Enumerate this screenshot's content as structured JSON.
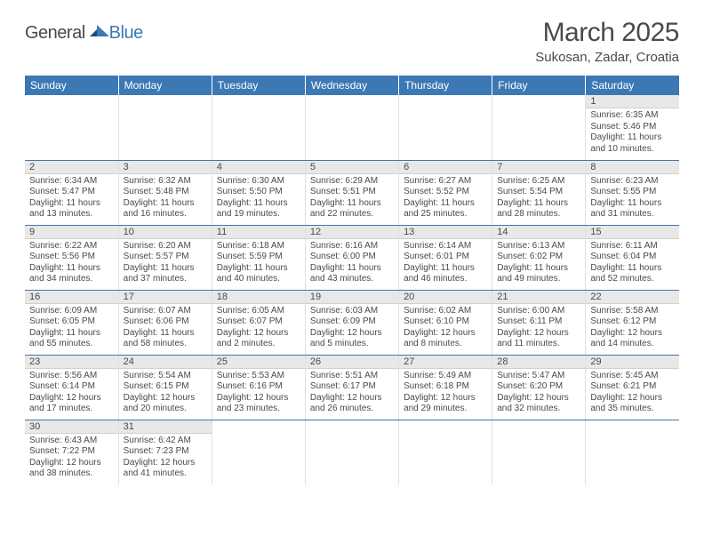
{
  "logo": {
    "general": "General",
    "blue": "Blue"
  },
  "title": "March 2025",
  "location": "Sukosan, Zadar, Croatia",
  "colors": {
    "header_bg": "#3c78b4",
    "header_fg": "#ffffff",
    "daynum_bg": "#e8e8e8",
    "text": "#4a4a4a",
    "row_border": "#3c78b4"
  },
  "weekdays": [
    "Sunday",
    "Monday",
    "Tuesday",
    "Wednesday",
    "Thursday",
    "Friday",
    "Saturday"
  ],
  "weeks": [
    [
      null,
      null,
      null,
      null,
      null,
      null,
      {
        "n": "1",
        "sr": "Sunrise: 6:35 AM",
        "ss": "Sunset: 5:46 PM",
        "d1": "Daylight: 11 hours",
        "d2": "and 10 minutes."
      }
    ],
    [
      {
        "n": "2",
        "sr": "Sunrise: 6:34 AM",
        "ss": "Sunset: 5:47 PM",
        "d1": "Daylight: 11 hours",
        "d2": "and 13 minutes."
      },
      {
        "n": "3",
        "sr": "Sunrise: 6:32 AM",
        "ss": "Sunset: 5:48 PM",
        "d1": "Daylight: 11 hours",
        "d2": "and 16 minutes."
      },
      {
        "n": "4",
        "sr": "Sunrise: 6:30 AM",
        "ss": "Sunset: 5:50 PM",
        "d1": "Daylight: 11 hours",
        "d2": "and 19 minutes."
      },
      {
        "n": "5",
        "sr": "Sunrise: 6:29 AM",
        "ss": "Sunset: 5:51 PM",
        "d1": "Daylight: 11 hours",
        "d2": "and 22 minutes."
      },
      {
        "n": "6",
        "sr": "Sunrise: 6:27 AM",
        "ss": "Sunset: 5:52 PM",
        "d1": "Daylight: 11 hours",
        "d2": "and 25 minutes."
      },
      {
        "n": "7",
        "sr": "Sunrise: 6:25 AM",
        "ss": "Sunset: 5:54 PM",
        "d1": "Daylight: 11 hours",
        "d2": "and 28 minutes."
      },
      {
        "n": "8",
        "sr": "Sunrise: 6:23 AM",
        "ss": "Sunset: 5:55 PM",
        "d1": "Daylight: 11 hours",
        "d2": "and 31 minutes."
      }
    ],
    [
      {
        "n": "9",
        "sr": "Sunrise: 6:22 AM",
        "ss": "Sunset: 5:56 PM",
        "d1": "Daylight: 11 hours",
        "d2": "and 34 minutes."
      },
      {
        "n": "10",
        "sr": "Sunrise: 6:20 AM",
        "ss": "Sunset: 5:57 PM",
        "d1": "Daylight: 11 hours",
        "d2": "and 37 minutes."
      },
      {
        "n": "11",
        "sr": "Sunrise: 6:18 AM",
        "ss": "Sunset: 5:59 PM",
        "d1": "Daylight: 11 hours",
        "d2": "and 40 minutes."
      },
      {
        "n": "12",
        "sr": "Sunrise: 6:16 AM",
        "ss": "Sunset: 6:00 PM",
        "d1": "Daylight: 11 hours",
        "d2": "and 43 minutes."
      },
      {
        "n": "13",
        "sr": "Sunrise: 6:14 AM",
        "ss": "Sunset: 6:01 PM",
        "d1": "Daylight: 11 hours",
        "d2": "and 46 minutes."
      },
      {
        "n": "14",
        "sr": "Sunrise: 6:13 AM",
        "ss": "Sunset: 6:02 PM",
        "d1": "Daylight: 11 hours",
        "d2": "and 49 minutes."
      },
      {
        "n": "15",
        "sr": "Sunrise: 6:11 AM",
        "ss": "Sunset: 6:04 PM",
        "d1": "Daylight: 11 hours",
        "d2": "and 52 minutes."
      }
    ],
    [
      {
        "n": "16",
        "sr": "Sunrise: 6:09 AM",
        "ss": "Sunset: 6:05 PM",
        "d1": "Daylight: 11 hours",
        "d2": "and 55 minutes."
      },
      {
        "n": "17",
        "sr": "Sunrise: 6:07 AM",
        "ss": "Sunset: 6:06 PM",
        "d1": "Daylight: 11 hours",
        "d2": "and 58 minutes."
      },
      {
        "n": "18",
        "sr": "Sunrise: 6:05 AM",
        "ss": "Sunset: 6:07 PM",
        "d1": "Daylight: 12 hours",
        "d2": "and 2 minutes."
      },
      {
        "n": "19",
        "sr": "Sunrise: 6:03 AM",
        "ss": "Sunset: 6:09 PM",
        "d1": "Daylight: 12 hours",
        "d2": "and 5 minutes."
      },
      {
        "n": "20",
        "sr": "Sunrise: 6:02 AM",
        "ss": "Sunset: 6:10 PM",
        "d1": "Daylight: 12 hours",
        "d2": "and 8 minutes."
      },
      {
        "n": "21",
        "sr": "Sunrise: 6:00 AM",
        "ss": "Sunset: 6:11 PM",
        "d1": "Daylight: 12 hours",
        "d2": "and 11 minutes."
      },
      {
        "n": "22",
        "sr": "Sunrise: 5:58 AM",
        "ss": "Sunset: 6:12 PM",
        "d1": "Daylight: 12 hours",
        "d2": "and 14 minutes."
      }
    ],
    [
      {
        "n": "23",
        "sr": "Sunrise: 5:56 AM",
        "ss": "Sunset: 6:14 PM",
        "d1": "Daylight: 12 hours",
        "d2": "and 17 minutes."
      },
      {
        "n": "24",
        "sr": "Sunrise: 5:54 AM",
        "ss": "Sunset: 6:15 PM",
        "d1": "Daylight: 12 hours",
        "d2": "and 20 minutes."
      },
      {
        "n": "25",
        "sr": "Sunrise: 5:53 AM",
        "ss": "Sunset: 6:16 PM",
        "d1": "Daylight: 12 hours",
        "d2": "and 23 minutes."
      },
      {
        "n": "26",
        "sr": "Sunrise: 5:51 AM",
        "ss": "Sunset: 6:17 PM",
        "d1": "Daylight: 12 hours",
        "d2": "and 26 minutes."
      },
      {
        "n": "27",
        "sr": "Sunrise: 5:49 AM",
        "ss": "Sunset: 6:18 PM",
        "d1": "Daylight: 12 hours",
        "d2": "and 29 minutes."
      },
      {
        "n": "28",
        "sr": "Sunrise: 5:47 AM",
        "ss": "Sunset: 6:20 PM",
        "d1": "Daylight: 12 hours",
        "d2": "and 32 minutes."
      },
      {
        "n": "29",
        "sr": "Sunrise: 5:45 AM",
        "ss": "Sunset: 6:21 PM",
        "d1": "Daylight: 12 hours",
        "d2": "and 35 minutes."
      }
    ],
    [
      {
        "n": "30",
        "sr": "Sunrise: 6:43 AM",
        "ss": "Sunset: 7:22 PM",
        "d1": "Daylight: 12 hours",
        "d2": "and 38 minutes."
      },
      {
        "n": "31",
        "sr": "Sunrise: 6:42 AM",
        "ss": "Sunset: 7:23 PM",
        "d1": "Daylight: 12 hours",
        "d2": "and 41 minutes."
      },
      null,
      null,
      null,
      null,
      null
    ]
  ]
}
